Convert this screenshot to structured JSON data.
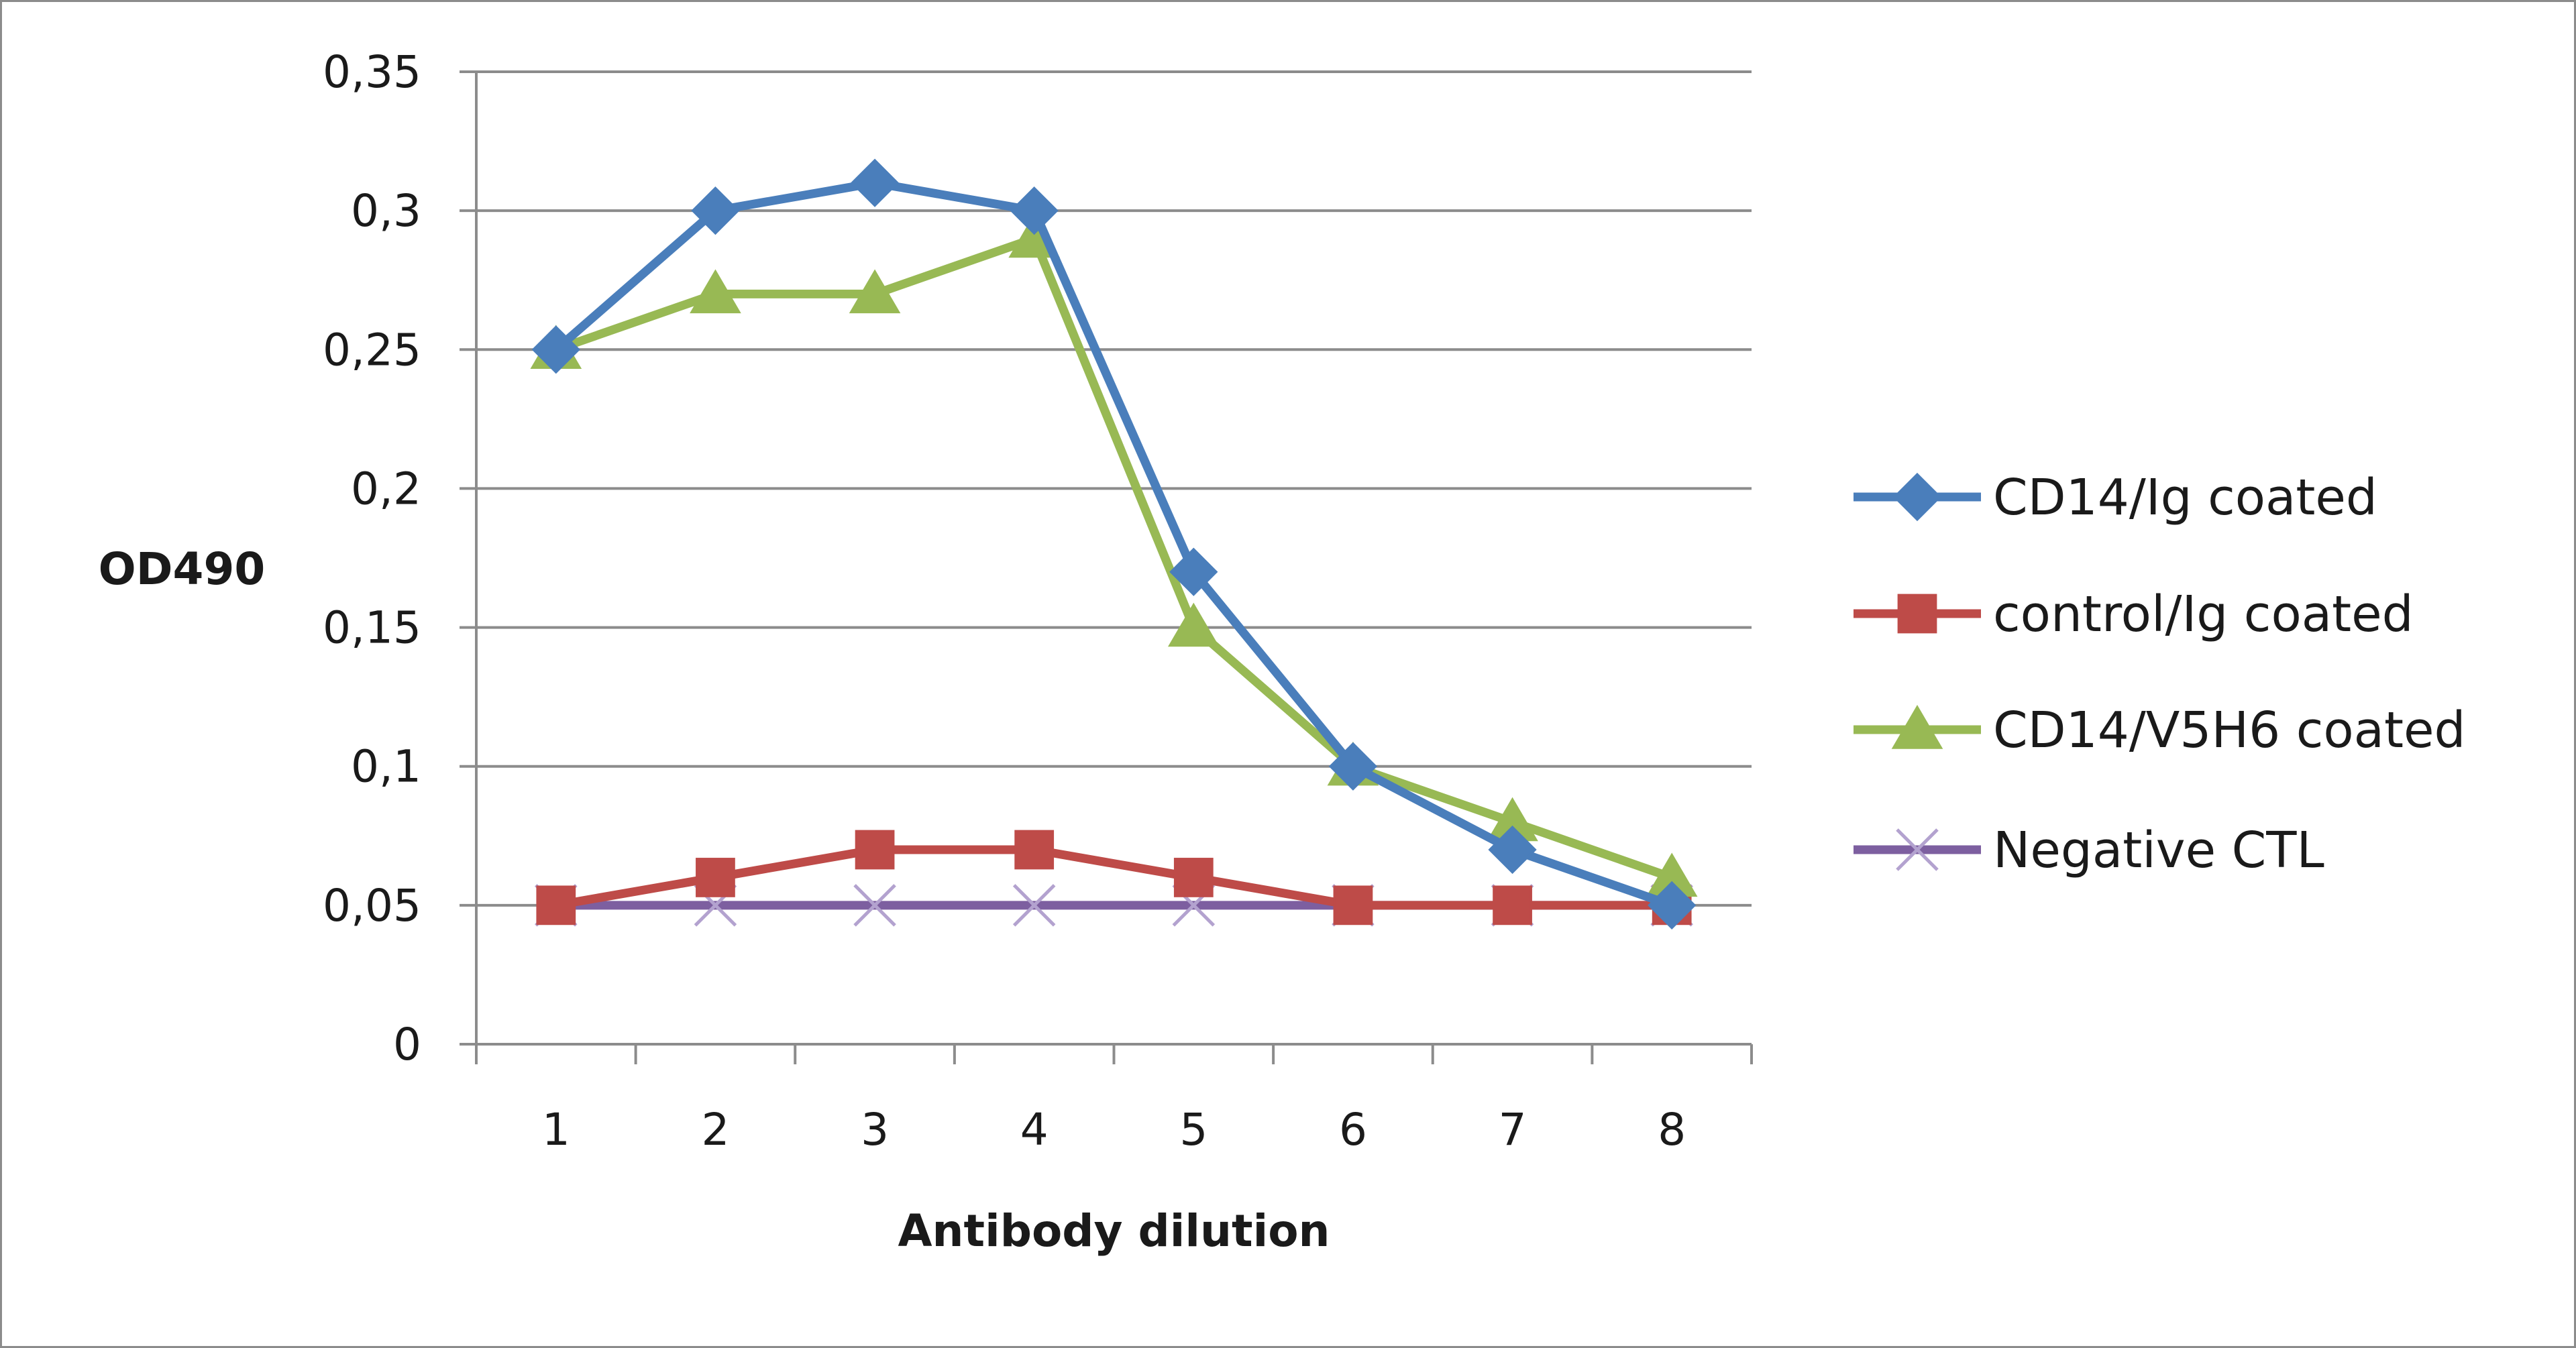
{
  "chart_data": {
    "type": "line",
    "title": "",
    "xlabel": "Antibody dilution",
    "ylabel": "OD490",
    "categories": [
      "1",
      "2",
      "3",
      "4",
      "5",
      "6",
      "7",
      "8"
    ],
    "ylim": [
      0,
      0.35
    ],
    "yticks": [
      0,
      0.05,
      0.1,
      0.15,
      0.2,
      0.25,
      0.3,
      0.35
    ],
    "ytick_labels": [
      "0",
      "0,05",
      "0,1",
      "0,15",
      "0,2",
      "0,25",
      "0,3",
      "0,35"
    ],
    "grid": "horizontal",
    "legend_position": "right",
    "series": [
      {
        "name": "CD14/Ig coated",
        "color": "#4a7ebb",
        "marker": "diamond",
        "values": [
          0.25,
          0.3,
          0.31,
          0.3,
          0.17,
          0.1,
          0.07,
          0.05
        ]
      },
      {
        "name": "control/Ig coated",
        "color": "#be4b48",
        "marker": "square",
        "values": [
          0.05,
          0.06,
          0.07,
          0.07,
          0.06,
          0.05,
          0.05,
          0.05
        ]
      },
      {
        "name": "CD14/V5H6 coated",
        "color": "#98b954",
        "marker": "triangle",
        "values": [
          0.25,
          0.27,
          0.27,
          0.29,
          0.15,
          0.1,
          0.08,
          0.06
        ]
      },
      {
        "name": "Negative CTL",
        "color": "#7d5fa0",
        "marker": "x",
        "values": [
          0.05,
          0.05,
          0.05,
          0.05,
          0.05,
          0.05,
          0.05,
          0.05
        ]
      }
    ]
  }
}
